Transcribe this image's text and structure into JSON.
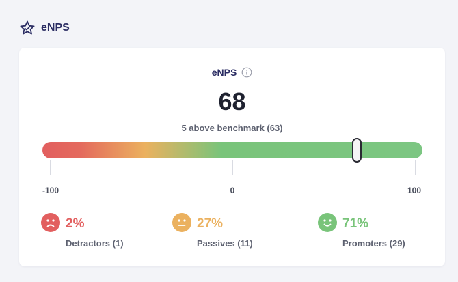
{
  "header": {
    "title": "eNPS",
    "icon": "star-icon"
  },
  "card": {
    "label": "eNPS",
    "info_icon": "info-icon",
    "score": "68",
    "score_value": 68,
    "benchmark_text": "5 above benchmark (63)",
    "scale": {
      "min": -100,
      "max": 100,
      "labels": [
        "-100",
        "0",
        "100"
      ]
    }
  },
  "stats": [
    {
      "value": "2%",
      "caption": "Detractors (1)",
      "icon": "frown-face-icon",
      "color": "#e25f5f"
    },
    {
      "value": "27%",
      "caption": "Passives (11)",
      "icon": "neutral-face-icon",
      "color": "#ebb15f"
    },
    {
      "value": "71%",
      "caption": "Promoters (29)",
      "icon": "smile-face-icon",
      "color": "#79c47a"
    }
  ]
}
